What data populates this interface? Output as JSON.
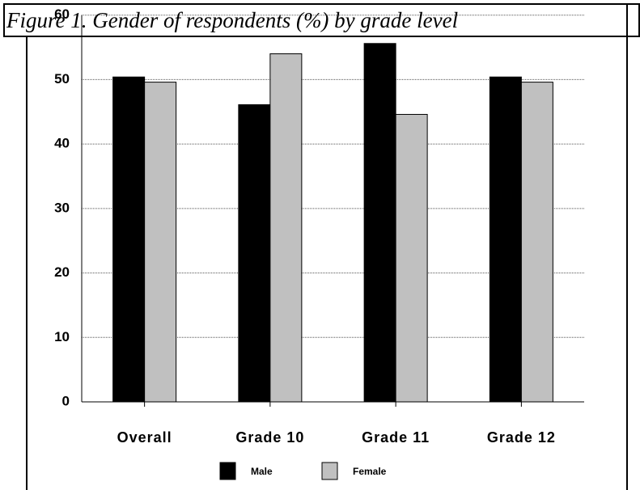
{
  "chart_data": {
    "type": "bar",
    "title": "Figure 1.  Gender of respondents (%) by grade level",
    "categories": [
      "Overall",
      "Grade 10",
      "Grade 11",
      "Grade 12"
    ],
    "series": [
      {
        "name": "Male",
        "color": "#000000",
        "values": [
          50.4,
          46.1,
          55.6,
          50.4
        ]
      },
      {
        "name": "Female",
        "color": "#c0c0c0",
        "values": [
          49.6,
          54.0,
          44.6,
          49.6
        ]
      }
    ],
    "ylim": [
      0,
      60
    ],
    "yticks": [
      0,
      10,
      20,
      30,
      40,
      50,
      60
    ],
    "grid": true,
    "legend": "bottom"
  }
}
